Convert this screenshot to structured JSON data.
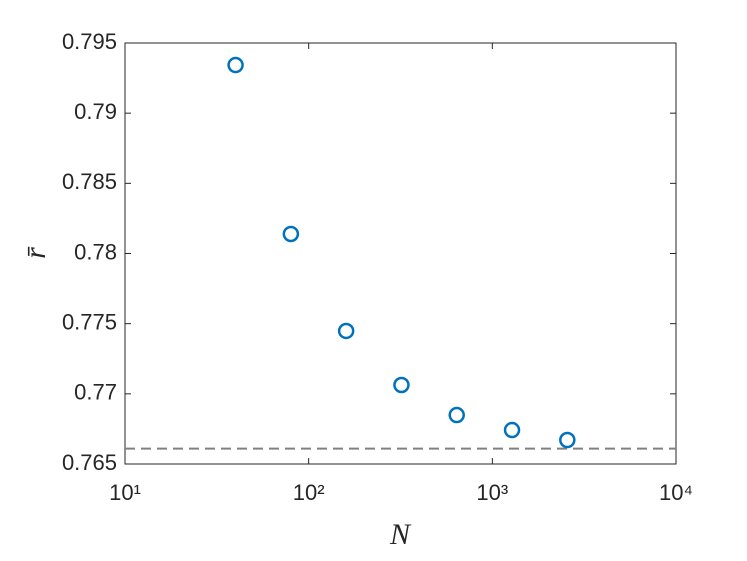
{
  "chart_data": {
    "type": "scatter",
    "x_label": "N",
    "y_label": "r̄",
    "x": [
      40,
      80,
      160,
      320,
      640,
      1280,
      2560
    ],
    "series": [
      {
        "color": "#0072bd",
        "values": [
          0.79343,
          0.78139,
          0.77448,
          0.77063,
          0.76849,
          0.76742,
          0.76671
        ]
      }
    ],
    "xlim": [
      10,
      10000
    ],
    "x_log": true,
    "xticks": [
      {
        "value": 10,
        "label": "10¹"
      },
      {
        "value": 100,
        "label": "10²"
      },
      {
        "value": 1000,
        "label": "10³"
      },
      {
        "value": 10000,
        "label": "10⁴"
      }
    ],
    "ylim": [
      0.765,
      0.795
    ],
    "yticks": [
      0.765,
      0.77,
      0.775,
      0.78,
      0.785,
      0.79,
      0.795
    ],
    "reference_line": {
      "y": 0.7661,
      "color": "#808080"
    }
  }
}
